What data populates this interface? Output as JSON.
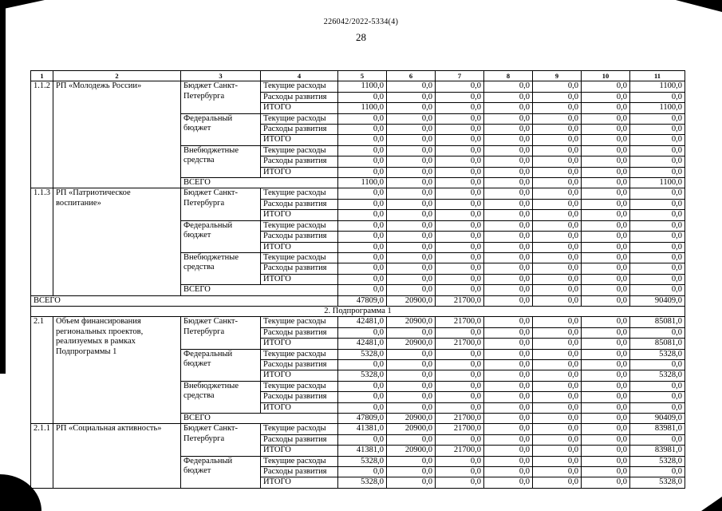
{
  "page": {
    "doc_ref": "226042/2022-5334(4)",
    "page_number": "28"
  },
  "table": {
    "column_numbers": [
      "1",
      "2",
      "3",
      "4",
      "5",
      "6",
      "7",
      "8",
      "9",
      "10",
      "11"
    ],
    "sections": [
      {
        "type": "group",
        "num": "1.1.2",
        "name": "РП «Молодежь России»",
        "budgets": [
          {
            "source": "Бюджет Санкт-Петербурга",
            "rows": [
              {
                "label": "Текущие расходы",
                "values": [
                  "1100,0",
                  "0,0",
                  "0,0",
                  "0,0",
                  "0,0",
                  "0,0",
                  "1100,0"
                ]
              },
              {
                "label": "Расходы развития",
                "values": [
                  "0,0",
                  "0,0",
                  "0,0",
                  "0,0",
                  "0,0",
                  "0,0",
                  "0,0"
                ]
              },
              {
                "label": "ИТОГО",
                "values": [
                  "1100,0",
                  "0,0",
                  "0,0",
                  "0,0",
                  "0,0",
                  "0,0",
                  "1100,0"
                ]
              }
            ]
          },
          {
            "source": "Федеральный бюджет",
            "rows": [
              {
                "label": "Текущие расходы",
                "values": [
                  "0,0",
                  "0,0",
                  "0,0",
                  "0,0",
                  "0,0",
                  "0,0",
                  "0,0"
                ]
              },
              {
                "label": "Расходы развития",
                "values": [
                  "0,0",
                  "0,0",
                  "0,0",
                  "0,0",
                  "0,0",
                  "0,0",
                  "0,0"
                ]
              },
              {
                "label": "ИТОГО",
                "values": [
                  "0,0",
                  "0,0",
                  "0,0",
                  "0,0",
                  "0,0",
                  "0,0",
                  "0,0"
                ]
              }
            ]
          },
          {
            "source": "Внебюджетные средства",
            "rows": [
              {
                "label": "Текущие расходы",
                "values": [
                  "0,0",
                  "0,0",
                  "0,0",
                  "0,0",
                  "0,0",
                  "0,0",
                  "0,0"
                ]
              },
              {
                "label": "Расходы развития",
                "values": [
                  "0,0",
                  "0,0",
                  "0,0",
                  "0,0",
                  "0,0",
                  "0,0",
                  "0,0"
                ]
              },
              {
                "label": "ИТОГО",
                "values": [
                  "0,0",
                  "0,0",
                  "0,0",
                  "0,0",
                  "0,0",
                  "0,0",
                  "0,0"
                ]
              }
            ]
          }
        ],
        "total": {
          "label": "ВСЕГО",
          "values": [
            "1100,0",
            "0,0",
            "0,0",
            "0,0",
            "0,0",
            "0,0",
            "1100,0"
          ]
        }
      },
      {
        "type": "group",
        "num": "1.1.3",
        "name": "РП «Патриотическое воспитание»",
        "budgets": [
          {
            "source": "Бюджет Санкт-Петербурга",
            "rows": [
              {
                "label": "Текущие расходы",
                "values": [
                  "0,0",
                  "0,0",
                  "0,0",
                  "0,0",
                  "0,0",
                  "0,0",
                  "0,0"
                ]
              },
              {
                "label": "Расходы развития",
                "values": [
                  "0,0",
                  "0,0",
                  "0,0",
                  "0,0",
                  "0,0",
                  "0,0",
                  "0,0"
                ]
              },
              {
                "label": "ИТОГО",
                "values": [
                  "0,0",
                  "0,0",
                  "0,0",
                  "0,0",
                  "0,0",
                  "0,0",
                  "0,0"
                ]
              }
            ]
          },
          {
            "source": "Федеральный бюджет",
            "rows": [
              {
                "label": "Текущие расходы",
                "values": [
                  "0,0",
                  "0,0",
                  "0,0",
                  "0,0",
                  "0,0",
                  "0,0",
                  "0,0"
                ]
              },
              {
                "label": "Расходы развития",
                "values": [
                  "0,0",
                  "0,0",
                  "0,0",
                  "0,0",
                  "0,0",
                  "0,0",
                  "0,0"
                ]
              },
              {
                "label": "ИТОГО",
                "values": [
                  "0,0",
                  "0,0",
                  "0,0",
                  "0,0",
                  "0,0",
                  "0,0",
                  "0,0"
                ]
              }
            ]
          },
          {
            "source": "Внебюджетные средства",
            "rows": [
              {
                "label": "Текущие расходы",
                "values": [
                  "0,0",
                  "0,0",
                  "0,0",
                  "0,0",
                  "0,0",
                  "0,0",
                  "0,0"
                ]
              },
              {
                "label": "Расходы развития",
                "values": [
                  "0,0",
                  "0,0",
                  "0,0",
                  "0,0",
                  "0,0",
                  "0,0",
                  "0,0"
                ]
              },
              {
                "label": "ИТОГО",
                "values": [
                  "0,0",
                  "0,0",
                  "0,0",
                  "0,0",
                  "0,0",
                  "0,0",
                  "0,0"
                ]
              }
            ]
          }
        ],
        "total": {
          "label": "ВСЕГО",
          "values": [
            "0,0",
            "0,0",
            "0,0",
            "0,0",
            "0,0",
            "0,0",
            "0,0"
          ]
        }
      },
      {
        "type": "total",
        "label": "ВСЕГО",
        "values": [
          "47809,0",
          "20900,0",
          "21700,0",
          "0,0",
          "0,0",
          "0,0",
          "90409,0"
        ]
      },
      {
        "type": "section",
        "label": "2. Подпрограмма 1"
      },
      {
        "type": "group",
        "num": "2.1",
        "name": "Объем финансирования региональных проектов, реализуемых в рамках Подпрограммы 1",
        "budgets": [
          {
            "source": "Бюджет Санкт-Петербурга",
            "rows": [
              {
                "label": "Текущие расходы",
                "values": [
                  "42481,0",
                  "20900,0",
                  "21700,0",
                  "0,0",
                  "0,0",
                  "0,0",
                  "85081,0"
                ]
              },
              {
                "label": "Расходы развития",
                "values": [
                  "0,0",
                  "0,0",
                  "0,0",
                  "0,0",
                  "0,0",
                  "0,0",
                  "0,0"
                ]
              },
              {
                "label": "ИТОГО",
                "values": [
                  "42481,0",
                  "20900,0",
                  "21700,0",
                  "0,0",
                  "0,0",
                  "0,0",
                  "85081,0"
                ]
              }
            ]
          },
          {
            "source": "Федеральный бюджет",
            "rows": [
              {
                "label": "Текущие расходы",
                "values": [
                  "5328,0",
                  "0,0",
                  "0,0",
                  "0,0",
                  "0,0",
                  "0,0",
                  "5328,0"
                ]
              },
              {
                "label": "Расходы развития",
                "values": [
                  "0,0",
                  "0,0",
                  "0,0",
                  "0,0",
                  "0,0",
                  "0,0",
                  "0,0"
                ]
              },
              {
                "label": "ИТОГО",
                "values": [
                  "5328,0",
                  "0,0",
                  "0,0",
                  "0,0",
                  "0,0",
                  "0,0",
                  "5328,0"
                ]
              }
            ]
          },
          {
            "source": "Внебюджетные средства",
            "rows": [
              {
                "label": "Текущие расходы",
                "values": [
                  "0,0",
                  "0,0",
                  "0,0",
                  "0,0",
                  "0,0",
                  "0,0",
                  "0,0"
                ]
              },
              {
                "label": "Расходы развития",
                "values": [
                  "0,0",
                  "0,0",
                  "0,0",
                  "0,0",
                  "0,0",
                  "0,0",
                  "0,0"
                ]
              },
              {
                "label": "ИТОГО",
                "values": [
                  "0,0",
                  "0,0",
                  "0,0",
                  "0,0",
                  "0,0",
                  "0,0",
                  "0,0"
                ]
              }
            ]
          }
        ],
        "total": {
          "label": "ВСЕГО",
          "values": [
            "47809,0",
            "20900,0",
            "21700,0",
            "0,0",
            "0,0",
            "0,0",
            "90409,0"
          ]
        }
      },
      {
        "type": "group",
        "num": "2.1.1",
        "name": "РП «Социальная активность»",
        "budgets": [
          {
            "source": "Бюджет Санкт-Петербурга",
            "rows": [
              {
                "label": "Текущие расходы",
                "values": [
                  "41381,0",
                  "20900,0",
                  "21700,0",
                  "0,0",
                  "0,0",
                  "0,0",
                  "83981,0"
                ]
              },
              {
                "label": "Расходы развития",
                "values": [
                  "0,0",
                  "0,0",
                  "0,0",
                  "0,0",
                  "0,0",
                  "0,0",
                  "0,0"
                ]
              },
              {
                "label": "ИТОГО",
                "values": [
                  "41381,0",
                  "20900,0",
                  "21700,0",
                  "0,0",
                  "0,0",
                  "0,0",
                  "83981,0"
                ]
              }
            ]
          },
          {
            "source": "Федеральный бюджет",
            "rows": [
              {
                "label": "Текущие расходы",
                "values": [
                  "5328,0",
                  "0,0",
                  "0,0",
                  "0,0",
                  "0,0",
                  "0,0",
                  "5328,0"
                ]
              },
              {
                "label": "Расходы развития",
                "values": [
                  "0,0",
                  "0,0",
                  "0,0",
                  "0,0",
                  "0,0",
                  "0,0",
                  "0,0"
                ]
              },
              {
                "label": "ИТОГО",
                "values": [
                  "5328,0",
                  "0,0",
                  "0,0",
                  "0,0",
                  "0,0",
                  "0,0",
                  "5328,0"
                ]
              }
            ]
          }
        ]
      }
    ]
  }
}
